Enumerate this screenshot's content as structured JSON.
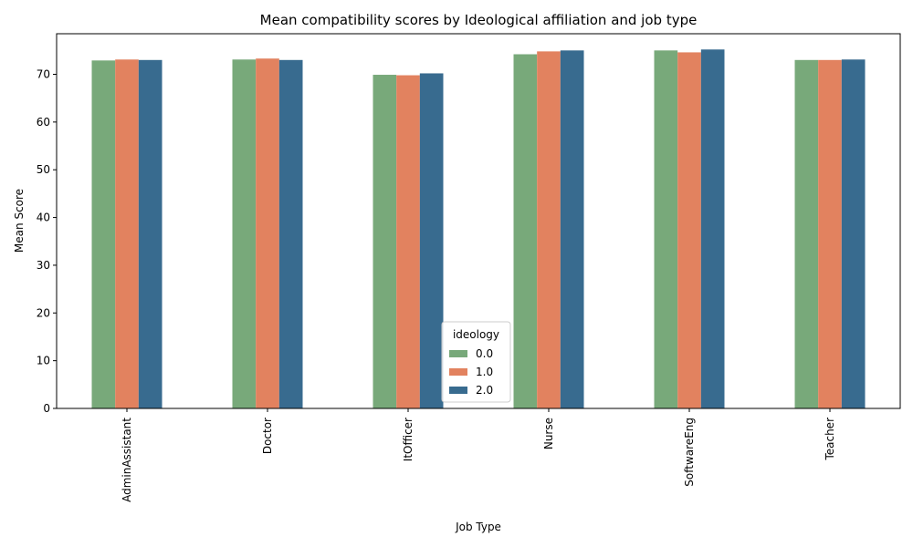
{
  "chart_data": {
    "type": "bar",
    "title": "Mean compatibility scores by Ideological affiliation and job type",
    "xlabel": "Job Type",
    "ylabel": "Mean Score",
    "categories": [
      "AdminAssistant",
      "Doctor",
      "ItOfficer",
      "Nurse",
      "SoftwareEng",
      "Teacher"
    ],
    "ylim": [
      0,
      78.5
    ],
    "yticks": [
      0,
      10,
      20,
      30,
      40,
      50,
      60,
      70
    ],
    "legend_title": "ideology",
    "legend_position": "bottom-center",
    "series": [
      {
        "name": "0.0",
        "color": "#78a97a",
        "values": [
          72.9,
          73.1,
          69.9,
          74.2,
          75.0,
          73.0
        ]
      },
      {
        "name": "1.0",
        "color": "#e2825f",
        "values": [
          73.1,
          73.3,
          69.8,
          74.8,
          74.6,
          73.0
        ]
      },
      {
        "name": "2.0",
        "color": "#386b8f",
        "values": [
          73.0,
          73.0,
          70.2,
          75.0,
          75.2,
          73.1
        ]
      }
    ]
  }
}
